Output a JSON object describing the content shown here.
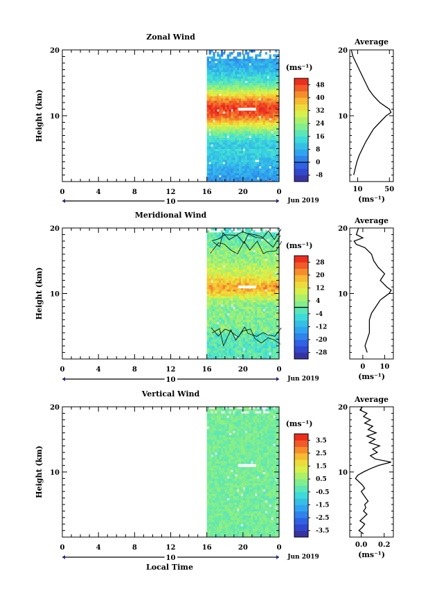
{
  "xlabel": "Local Time",
  "date_label": "Jun 2019",
  "chart_data": [
    {
      "type": "heatmap",
      "title": "Zonal Wind",
      "ylabel": "Height (km)",
      "unit": "(ms⁻¹)",
      "x_ticks": [
        "0",
        "4",
        "8",
        "12",
        "16",
        "20",
        "0"
      ],
      "y_ticks": [
        "10",
        "20"
      ],
      "ylim": [
        0,
        20
      ],
      "day_label": "10",
      "colorbar_ticks": [
        "48",
        "40",
        "32",
        "24",
        "16",
        "8",
        "0",
        "-8"
      ],
      "colorbar_range": [
        -12,
        52
      ],
      "data_start_hour": 16,
      "avg_title": "Average",
      "avg_xticks": [
        "10",
        "50"
      ],
      "avg_xlim": [
        0,
        55
      ],
      "avg_profile": {
        "height": [
          1,
          2,
          3,
          4,
          5,
          6,
          7,
          8,
          9,
          10,
          10.5,
          11,
          11.5,
          12,
          13,
          14,
          15,
          16,
          17,
          18,
          19,
          20
        ],
        "value": [
          5,
          7,
          9,
          12,
          16,
          20,
          25,
          30,
          38,
          46,
          52,
          50,
          44,
          38,
          30,
          24,
          20,
          16,
          12,
          8,
          4,
          2
        ]
      }
    },
    {
      "type": "heatmap",
      "title": "Meridional Wind",
      "ylabel": "Height (km)",
      "unit": "(ms⁻¹)",
      "x_ticks": [
        "0",
        "4",
        "8",
        "12",
        "16",
        "20",
        "0"
      ],
      "y_ticks": [
        "10",
        "20"
      ],
      "ylim": [
        0,
        20
      ],
      "day_label": "10",
      "colorbar_ticks": [
        "28",
        "20",
        "12",
        "4",
        "-4",
        "-12",
        "-20",
        "-28"
      ],
      "colorbar_range": [
        -32,
        32
      ],
      "data_start_hour": 16,
      "avg_title": "Average",
      "avg_xticks": [
        "0",
        "10"
      ],
      "avg_xlim": [
        -6,
        14
      ],
      "avg_profile": {
        "height": [
          1,
          2,
          3,
          4,
          5,
          6,
          7,
          8,
          9,
          9.5,
          10,
          10.5,
          11,
          12,
          13,
          14,
          15,
          16,
          17,
          17.5,
          18,
          18.5,
          19,
          20
        ],
        "value": [
          2,
          1,
          2,
          3,
          3,
          3,
          4,
          6,
          8,
          10,
          12,
          13,
          11,
          8,
          10,
          7,
          5,
          4,
          1,
          -3,
          -4,
          0,
          -3,
          -2
        ]
      }
    },
    {
      "type": "heatmap",
      "title": "Vertical Wind",
      "ylabel": "Height (km)",
      "unit": "(ms⁻¹)",
      "x_ticks": [
        "0",
        "4",
        "8",
        "12",
        "16",
        "20",
        "0"
      ],
      "y_ticks": [
        "10",
        "20"
      ],
      "ylim": [
        0,
        20
      ],
      "day_label": "10",
      "colorbar_ticks": [
        "3.5",
        "2.5",
        "1.5",
        "0.5",
        "-0.5",
        "-1.5",
        "-2.5",
        "-3.5"
      ],
      "colorbar_range": [
        -4,
        4
      ],
      "data_start_hour": 16,
      "avg_title": "Average",
      "avg_xticks": [
        "0.0",
        "0.2"
      ],
      "avg_xlim": [
        -0.1,
        0.28
      ],
      "avg_profile": {
        "height": [
          0.5,
          1,
          1.5,
          2,
          2.5,
          3,
          3.5,
          4,
          4.5,
          5,
          5.5,
          6,
          6.5,
          7,
          7.5,
          8,
          8.5,
          9,
          9.5,
          10,
          10.5,
          11,
          11.5,
          12,
          12.5,
          13,
          13.5,
          14,
          14.5,
          15,
          15.5,
          16,
          16.5,
          17,
          17.5,
          18,
          18.5,
          19,
          19.5,
          20
        ],
        "value": [
          0.02,
          -0.02,
          0.01,
          0.03,
          -0.01,
          0.02,
          0.05,
          0.02,
          0.04,
          0.03,
          0.06,
          0.04,
          0.02,
          0.0,
          0.03,
          0.01,
          -0.02,
          -0.05,
          -0.03,
          0.02,
          0.08,
          0.15,
          0.26,
          0.12,
          0.08,
          0.14,
          0.1,
          0.16,
          0.07,
          0.12,
          0.05,
          0.13,
          0.06,
          0.1,
          0.03,
          0.08,
          0.02,
          0.05,
          -0.01,
          0.01
        ]
      }
    }
  ]
}
